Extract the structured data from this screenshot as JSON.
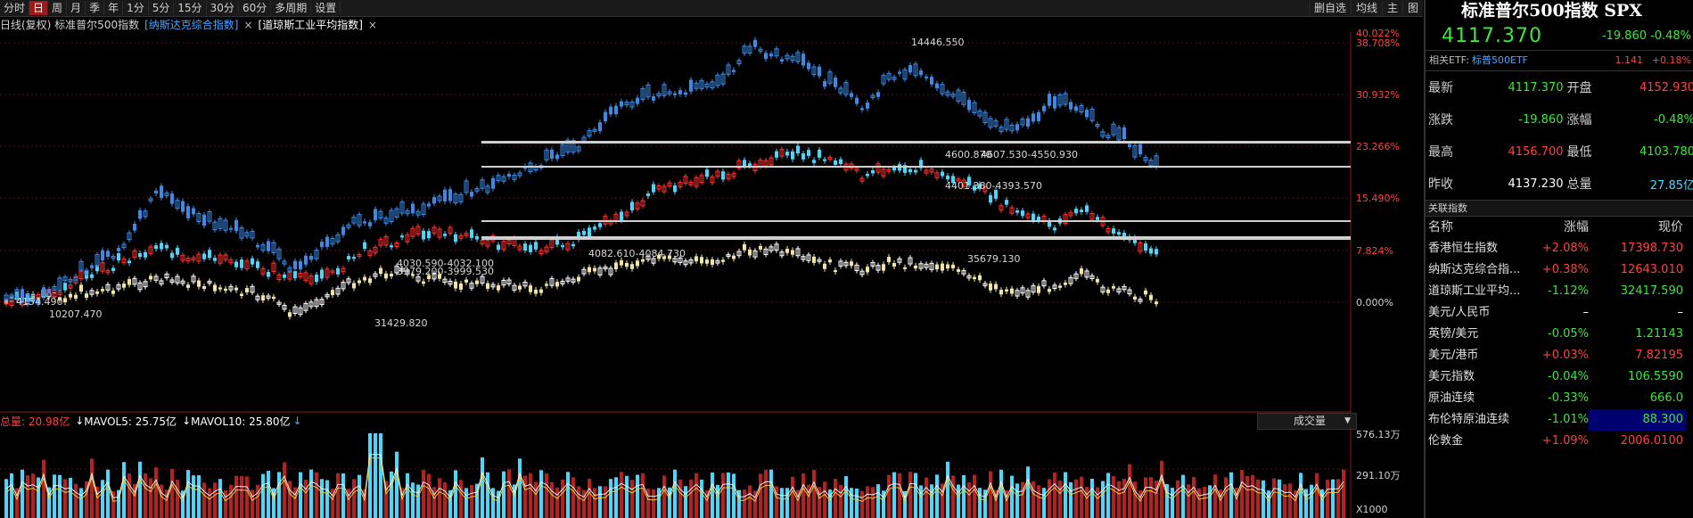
{
  "toolbar": {
    "periods": [
      "分时",
      "日",
      "周",
      "月",
      "季",
      "年",
      "1分",
      "5分",
      "15分",
      "30分",
      "60分",
      "多周期",
      "设置"
    ],
    "active_period": "日",
    "right_tools": [
      "删自选",
      "均线",
      "主",
      "图"
    ]
  },
  "overlay": {
    "main_label": "日线(复权) 标准普尔500指数",
    "indices": [
      {
        "label": "[纳斯达克综合指数]",
        "close": "×"
      },
      {
        "label": "[道琼斯工业平均指数]",
        "close": "×"
      }
    ]
  },
  "chart": {
    "right_axis": [
      "40.022%",
      "38.708%",
      "30.932%",
      "23.266%",
      "15.490%",
      "7.824%",
      "0.000%"
    ],
    "annotations": {
      "nasdaq_high": "14446.550",
      "nasdaq_low": "10207.470",
      "spx_low": "4154.490",
      "spx_high": "4600.870",
      "spx_band1": "4607.530-4550.930",
      "spx_band2": "4401.380-4393.570",
      "spx_band3": "4082.610-4084.730",
      "dow_high": "35679.130",
      "dow_low": "31429.820",
      "dow_band1": "4030.590-4032.100",
      "dow_band2": "3979.200-3999.530"
    },
    "colors": {
      "nasdaq": "#3a8be8",
      "spx": "#47d8ff",
      "dow": "#f0e6a0",
      "up": "#ff3030",
      "down": "#47d8ff"
    }
  },
  "volume": {
    "legend_total": "总量: 20.98亿",
    "legend_mavol5": "MAVOL5: 25.75亿",
    "legend_mavol10": "MAVOL10: 25.80亿",
    "selector": "成交量",
    "axis_top": "576.13万",
    "axis_mid": "291.10万",
    "axis_unit": "X1000"
  },
  "side": {
    "title": "标准普尔500指数 SPX",
    "price": "4117.370",
    "change": "-19.860",
    "change_pct": "-0.48%",
    "etf": {
      "label": "相关ETF:",
      "name": "标普500ETF",
      "price": "1.141",
      "pct": "+0.18%"
    },
    "stats": [
      {
        "l": "最新",
        "v": "4117.370",
        "vc": "green",
        "l2": "开盘",
        "v2": "4152.930",
        "v2c": "red"
      },
      {
        "l": "涨跌",
        "v": "-19.860",
        "vc": "green",
        "l2": "涨幅",
        "v2": "-0.48%",
        "v2c": "green"
      },
      {
        "l": "最高",
        "v": "4156.700",
        "vc": "red",
        "l2": "最低",
        "v2": "4103.780",
        "v2c": "green"
      },
      {
        "l": "昨收",
        "v": "4137.230",
        "vc": "white",
        "l2": "总量",
        "v2": "27.85亿",
        "v2c": "cyan"
      }
    ],
    "related_header": "关联指数",
    "table_header": {
      "name": "名称",
      "pct": "涨幅",
      "price": "现价"
    },
    "rows": [
      {
        "name": "香港恒生指数",
        "pct": "+2.08%",
        "pc": "red",
        "price": "17398.730",
        "prc": "red"
      },
      {
        "name": "纳斯达克综合指...",
        "pct": "+0.38%",
        "pc": "red",
        "price": "12643.010",
        "prc": "red"
      },
      {
        "name": "道琼斯工业平均...",
        "pct": "-1.12%",
        "pc": "green",
        "price": "32417.590",
        "prc": "green"
      },
      {
        "name": "美元/人民币",
        "pct": "–",
        "pc": "white",
        "price": "–",
        "prc": "white"
      },
      {
        "name": "英镑/美元",
        "pct": "-0.05%",
        "pc": "green",
        "price": "1.21143",
        "prc": "green"
      },
      {
        "name": "美元/港币",
        "pct": "+0.03%",
        "pc": "red",
        "price": "7.82195",
        "prc": "red"
      },
      {
        "name": "美元指数",
        "pct": "-0.04%",
        "pc": "green",
        "price": "106.5590",
        "prc": "green"
      },
      {
        "name": "原油连续",
        "pct": "-0.33%",
        "pc": "green",
        "price": "666.0",
        "prc": "green"
      },
      {
        "name": "布伦特原油连续",
        "pct": "-1.01%",
        "pc": "green",
        "price": "88.300",
        "prc": "green",
        "hl": true
      },
      {
        "name": "伦敦金",
        "pct": "+1.09%",
        "pc": "red",
        "price": "2006.0100",
        "prc": "red"
      }
    ]
  }
}
